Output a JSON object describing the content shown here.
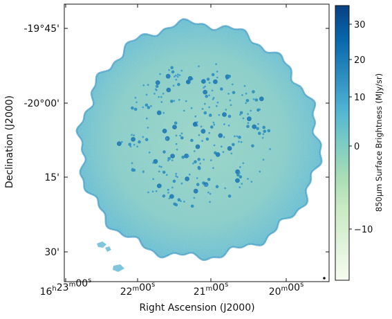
{
  "chart_data": {
    "type": "heatmap",
    "xlabel": "Right Ascension (J2000)",
    "ylabel": "Declination (J2000)",
    "x_ticks": [
      {
        "h": "16",
        "m": "23",
        "s": "00"
      },
      {
        "h": "",
        "m": "22",
        "s": "00"
      },
      {
        "h": "",
        "m": "21",
        "s": "00"
      },
      {
        "h": "",
        "m": "20",
        "s": "00"
      }
    ],
    "y_ticks": [
      "-19°45'",
      "-20°00'",
      "15'",
      "30'"
    ],
    "colorbar": {
      "label": "850μm Surface Brightness (MJy/sr)",
      "ticks": [
        "30",
        "20",
        "10",
        "0",
        "−10"
      ],
      "range": [
        -17,
        35
      ],
      "scale": "nonlinear",
      "colors": [
        "#f7fcf0",
        "#e0f3db",
        "#ccebc5",
        "#a8ddb5",
        "#7bccc4",
        "#4eb3d3",
        "#2b8cbe",
        "#0868ac",
        "#084081"
      ]
    },
    "map": {
      "shape": "circular field with scalloped edge",
      "background_level": "near 0 MJy/sr (light teal)",
      "sources": "many compact point sources (~10–35 MJy/sr) concentrated in the central region"
    },
    "grid": false
  }
}
